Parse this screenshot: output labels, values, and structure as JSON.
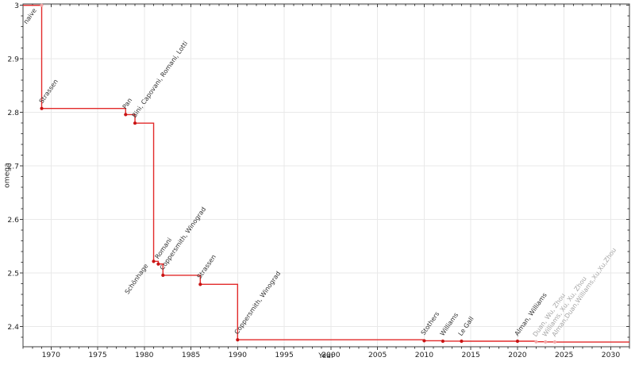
{
  "chart_data": {
    "type": "line",
    "step_mode": "post",
    "title": "",
    "xlabel": "Year",
    "ylabel": "omega",
    "xlim": [
      1967,
      2032
    ],
    "ylim": [
      2.3625,
      3.0025
    ],
    "x_ticks": [
      1970,
      1975,
      1980,
      1985,
      1990,
      1995,
      2000,
      2005,
      2010,
      2015,
      2020,
      2025,
      2030
    ],
    "x_minor_interval": 1,
    "y_ticks": [
      {
        "value": 3.0,
        "label": "3"
      },
      {
        "value": 2.9,
        "label": "2.9"
      },
      {
        "value": 2.8,
        "label": "2.8"
      },
      {
        "value": 2.7,
        "label": "2.7"
      },
      {
        "value": 2.6,
        "label": "2.6"
      },
      {
        "value": 2.5,
        "label": "2.5"
      },
      {
        "value": 2.4,
        "label": "2.4"
      }
    ],
    "y_minor_interval": 0.02,
    "grid": "major",
    "legend": "none",
    "colors": {
      "line": "#e22a2a",
      "marker": "#c81414",
      "faded_marker": "#f2a8a8",
      "label": "#333333",
      "faded_label": "#a6a6a6",
      "grid": "#e9e9e9",
      "axis": "#3c3c3c",
      "tick_label": "#1f1f1f",
      "background": "#ffffff"
    },
    "points": [
      {
        "year": 1969,
        "omega": 3.0,
        "label": "naive",
        "label_side": "below",
        "faded_marker": true,
        "faded_label": false
      },
      {
        "year": 1969,
        "omega": 2.8074,
        "label": "Strassen",
        "label_side": "above",
        "faded_marker": false,
        "faded_label": false
      },
      {
        "year": 1978,
        "omega": 2.796,
        "label": "Pan",
        "label_side": "above",
        "faded_marker": false,
        "faded_label": false
      },
      {
        "year": 1979,
        "omega": 2.78,
        "label": "Bini, Capovani, Romani, Lotti",
        "label_side": "above",
        "faded_marker": false,
        "faded_label": false
      },
      {
        "year": 1981,
        "omega": 2.522,
        "label": "Schönhage",
        "label_side": "below",
        "faded_marker": false,
        "faded_label": false
      },
      {
        "year": 1981.5,
        "omega": 2.517,
        "label": "Romani",
        "label_side": "above",
        "faded_marker": false,
        "faded_label": false
      },
      {
        "year": 1982,
        "omega": 2.496,
        "label": "Coppersmith, Winograd",
        "label_side": "above",
        "faded_marker": false,
        "faded_label": false
      },
      {
        "year": 1986,
        "omega": 2.479,
        "label": "Strassen",
        "label_side": "above",
        "faded_marker": false,
        "faded_label": false
      },
      {
        "year": 1990,
        "omega": 2.3755,
        "label": "Coppersmith, Winograd",
        "label_side": "above",
        "faded_marker": false,
        "faded_label": false
      },
      {
        "year": 2010,
        "omega": 2.3737,
        "label": "Stothers",
        "label_side": "above",
        "faded_marker": false,
        "faded_label": false
      },
      {
        "year": 2012,
        "omega": 2.3729,
        "label": "Williams",
        "label_side": "above",
        "faded_marker": false,
        "faded_label": false
      },
      {
        "year": 2014,
        "omega": 2.3728639,
        "label": "Le Gall",
        "label_side": "above",
        "faded_marker": false,
        "faded_label": false
      },
      {
        "year": 2020,
        "omega": 2.3728596,
        "label": "Alman, Williams",
        "label_side": "above",
        "faded_marker": false,
        "faded_label": false
      },
      {
        "year": 2022,
        "omega": 2.371866,
        "label": "Duan, Wu, Zhou",
        "label_side": "above",
        "faded_marker": true,
        "faded_label": true
      },
      {
        "year": 2023,
        "omega": 2.371552,
        "label": "Williams, Xu, Xu, Zhou",
        "label_side": "above",
        "faded_marker": true,
        "faded_label": true
      },
      {
        "year": 2024,
        "omega": 2.371339,
        "label": "Alman,Duan,Williams,Xu,Xu,Zhou",
        "label_side": "above",
        "faded_marker": true,
        "faded_label": true
      }
    ]
  }
}
